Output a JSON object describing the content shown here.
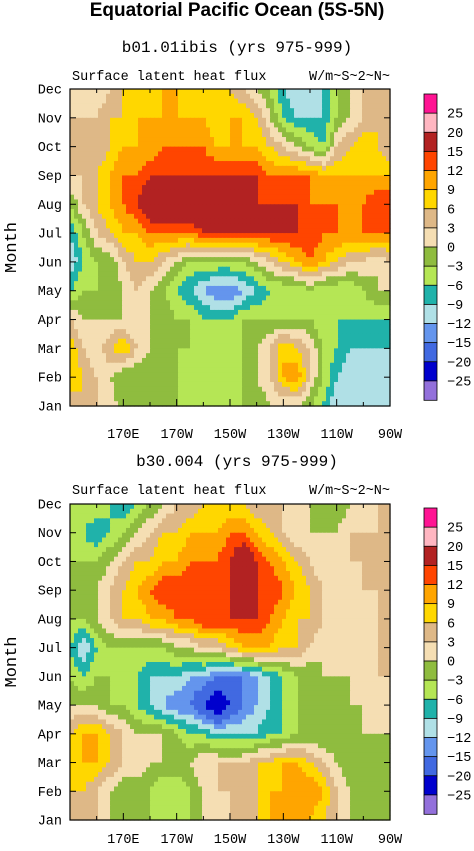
{
  "figure": {
    "title": "Equatorial Pacific Ocean (5S-5N)"
  },
  "colorbar": {
    "levels": [
      "25",
      "20",
      "15",
      "12",
      "9",
      "6",
      "3",
      "0",
      "−3",
      "−6",
      "−9",
      "−12",
      "−15",
      "−20",
      "−25"
    ],
    "colors": [
      "#ff1493",
      "#ffb6c1",
      "#b22222",
      "#ff4500",
      "#ffa500",
      "#ffd700",
      "#deb887",
      "#f5deb3",
      "#8fbc3f",
      "#b5e655",
      "#20b2aa",
      "#b0e0e6",
      "#6495ed",
      "#4169e1",
      "#0000cd",
      "#9370db"
    ]
  },
  "chart_data": [
    {
      "type": "heatmap",
      "panel_title": "b01.01ibis (yrs 975-999)",
      "left_label": "Surface latent heat flux",
      "right_label": "W/m~S~2~N~",
      "ylabel": "Month",
      "x_ticks": [
        "170E",
        "170W",
        "150W",
        "130W",
        "110W",
        "90W"
      ],
      "x_tick_lon": [
        170,
        190,
        210,
        230,
        250,
        270
      ],
      "xlim_lon": [
        150,
        270
      ],
      "y_ticks": [
        "Jan",
        "Feb",
        "Mar",
        "Apr",
        "May",
        "Jun",
        "Jul",
        "Aug",
        "Sep",
        "Oct",
        "Nov",
        "Dec"
      ],
      "x_lon": [
        150,
        155,
        160,
        165,
        170,
        175,
        180,
        185,
        190,
        195,
        200,
        205,
        210,
        215,
        220,
        225,
        230,
        235,
        240,
        245,
        250,
        255,
        260,
        265,
        270
      ],
      "values": [
        [
          3,
          6,
          3,
          3,
          -3,
          -3,
          -3,
          -3,
          -3,
          -6,
          -6,
          -6,
          -6,
          -3,
          -3,
          0,
          0,
          0,
          -3,
          -6,
          -12,
          -12,
          -12,
          -12,
          -12
        ],
        [
          9,
          6,
          3,
          0,
          -3,
          -3,
          -3,
          -3,
          -3,
          -6,
          -6,
          -6,
          -6,
          -3,
          0,
          3,
          9,
          12,
          3,
          -3,
          -9,
          -12,
          -12,
          -12,
          -12
        ],
        [
          9,
          3,
          0,
          6,
          9,
          3,
          0,
          -3,
          -3,
          -3,
          -6,
          -6,
          -6,
          -3,
          0,
          3,
          9,
          6,
          3,
          -3,
          -6,
          -9,
          -9,
          -9,
          -9
        ],
        [
          3,
          0,
          0,
          0,
          0,
          0,
          0,
          0,
          -3,
          -3,
          -6,
          -6,
          -6,
          -3,
          -3,
          -3,
          -3,
          -3,
          -3,
          -6,
          -6,
          -6,
          -6,
          -6,
          -6
        ],
        [
          -6,
          -3,
          -3,
          -3,
          0,
          3,
          0,
          -3,
          -6,
          -9,
          -12,
          -15,
          -15,
          -12,
          -9,
          -6,
          -6,
          -6,
          -3,
          -6,
          -6,
          -6,
          -3,
          0,
          0
        ],
        [
          -12,
          -6,
          -3,
          -3,
          3,
          6,
          6,
          3,
          0,
          -3,
          -3,
          -3,
          -3,
          -3,
          0,
          3,
          6,
          9,
          12,
          9,
          6,
          3,
          3,
          0,
          3
        ],
        [
          -9,
          -3,
          3,
          6,
          9,
          9,
          12,
          12,
          12,
          12,
          15,
          15,
          15,
          15,
          15,
          15,
          15,
          15,
          15,
          12,
          12,
          12,
          12,
          12,
          12
        ],
        [
          -3,
          3,
          6,
          9,
          12,
          15,
          20,
          20,
          20,
          20,
          20,
          20,
          20,
          20,
          15,
          15,
          15,
          15,
          12,
          12,
          12,
          9,
          12,
          15,
          15
        ],
        [
          3,
          3,
          6,
          9,
          12,
          12,
          15,
          15,
          15,
          15,
          15,
          15,
          15,
          15,
          15,
          12,
          12,
          12,
          12,
          9,
          9,
          9,
          9,
          9,
          9
        ],
        [
          3,
          3,
          3,
          6,
          9,
          9,
          9,
          12,
          12,
          12,
          12,
          9,
          9,
          9,
          9,
          6,
          3,
          0,
          -3,
          -6,
          3,
          6,
          9,
          6,
          3
        ],
        [
          3,
          3,
          3,
          6,
          6,
          9,
          9,
          9,
          9,
          9,
          9,
          6,
          9,
          9,
          6,
          0,
          -6,
          -9,
          -9,
          -9,
          -3,
          0,
          3,
          6,
          3
        ],
        [
          0,
          0,
          0,
          3,
          6,
          6,
          6,
          9,
          9,
          6,
          6,
          6,
          6,
          3,
          0,
          -3,
          -9,
          -12,
          -12,
          -9,
          -3,
          0,
          3,
          3,
          3
        ]
      ]
    },
    {
      "type": "heatmap",
      "panel_title": "b30.004 (yrs 975-999)",
      "left_label": "Surface latent heat flux",
      "right_label": "W/m~S~2~N~",
      "ylabel": "Month",
      "x_ticks": [
        "170E",
        "170W",
        "150W",
        "130W",
        "110W",
        "90W"
      ],
      "x_tick_lon": [
        170,
        190,
        210,
        230,
        250,
        270
      ],
      "xlim_lon": [
        150,
        270
      ],
      "y_ticks": [
        "Jan",
        "Feb",
        "Mar",
        "Apr",
        "May",
        "Jun",
        "Jul",
        "Aug",
        "Sep",
        "Oct",
        "Nov",
        "Dec"
      ],
      "x_lon": [
        150,
        155,
        160,
        165,
        170,
        175,
        180,
        185,
        190,
        195,
        200,
        205,
        210,
        215,
        220,
        225,
        230,
        235,
        240,
        245,
        250,
        255,
        260,
        265,
        270
      ],
      "values": [
        [
          3,
          3,
          3,
          0,
          -3,
          -3,
          -3,
          -3,
          -3,
          -3,
          0,
          0,
          3,
          3,
          6,
          9,
          9,
          9,
          9,
          6,
          3,
          0,
          -3,
          -3,
          -3
        ],
        [
          6,
          6,
          3,
          0,
          -3,
          -3,
          -3,
          -6,
          -6,
          -3,
          0,
          3,
          3,
          6,
          6,
          9,
          9,
          12,
          12,
          9,
          3,
          0,
          -3,
          -3,
          -3
        ],
        [
          6,
          9,
          9,
          6,
          3,
          3,
          0,
          0,
          0,
          0,
          3,
          3,
          3,
          3,
          6,
          6,
          9,
          9,
          6,
          3,
          0,
          -3,
          -3,
          -3,
          -3
        ],
        [
          6,
          9,
          9,
          6,
          3,
          0,
          0,
          0,
          -3,
          -6,
          -6,
          -9,
          -9,
          -9,
          -9,
          -6,
          -6,
          -3,
          -3,
          -3,
          -3,
          -3,
          0,
          0,
          0
        ],
        [
          0,
          0,
          0,
          -3,
          -3,
          -6,
          -9,
          -12,
          -15,
          -15,
          -20,
          -25,
          -20,
          -15,
          -12,
          -9,
          -6,
          -3,
          -3,
          -3,
          -3,
          0,
          0,
          0,
          0
        ],
        [
          -3,
          -6,
          -3,
          -3,
          -6,
          -6,
          -9,
          -9,
          -9,
          -12,
          -12,
          -15,
          -15,
          -15,
          -12,
          -9,
          -6,
          -3,
          -3,
          0,
          0,
          0,
          0,
          3,
          3
        ],
        [
          -6,
          -12,
          -6,
          -3,
          -3,
          -3,
          -3,
          -3,
          0,
          0,
          3,
          3,
          6,
          9,
          9,
          9,
          6,
          6,
          3,
          0,
          0,
          0,
          0,
          3,
          3
        ],
        [
          -3,
          -3,
          0,
          3,
          6,
          6,
          9,
          9,
          12,
          12,
          15,
          15,
          15,
          15,
          15,
          12,
          9,
          6,
          6,
          3,
          3,
          0,
          0,
          3,
          3
        ],
        [
          -3,
          -3,
          0,
          3,
          6,
          9,
          12,
          15,
          15,
          15,
          15,
          12,
          15,
          15,
          15,
          15,
          12,
          9,
          6,
          3,
          0,
          0,
          3,
          3,
          3
        ],
        [
          -3,
          -3,
          -3,
          0,
          3,
          6,
          6,
          9,
          9,
          12,
          12,
          12,
          15,
          20,
          15,
          12,
          9,
          6,
          3,
          0,
          0,
          3,
          3,
          3,
          3
        ],
        [
          -3,
          -6,
          -9,
          -6,
          -3,
          0,
          3,
          6,
          6,
          9,
          9,
          9,
          12,
          12,
          9,
          6,
          3,
          0,
          0,
          0,
          0,
          3,
          3,
          3,
          3
        ],
        [
          -3,
          -3,
          -3,
          -6,
          -9,
          -6,
          -3,
          0,
          3,
          3,
          6,
          6,
          6,
          6,
          3,
          3,
          3,
          0,
          0,
          -3,
          -3,
          0,
          0,
          3,
          3
        ]
      ]
    }
  ]
}
